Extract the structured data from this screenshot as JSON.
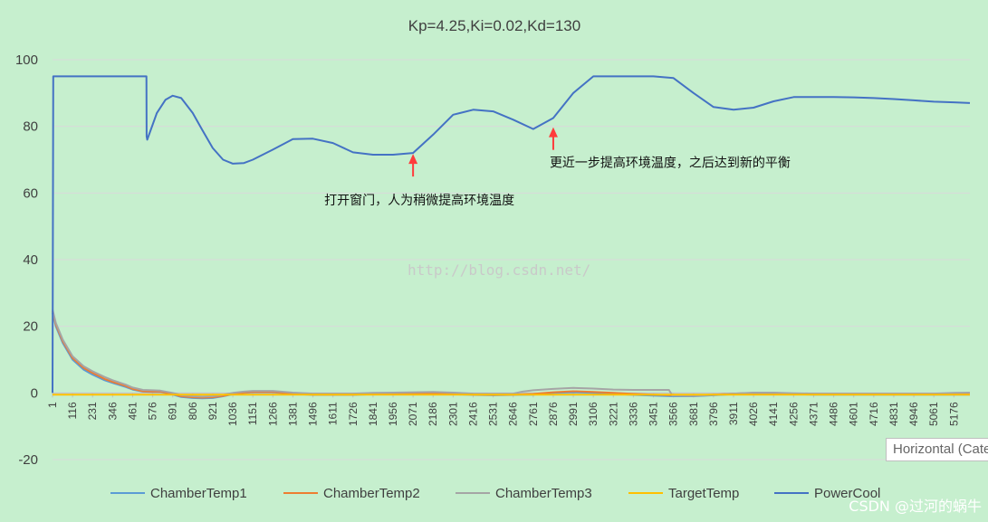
{
  "chart_data": {
    "type": "line",
    "title": "Kp=4.25,Ki=0.02,Kd=130",
    "ylim": [
      -20,
      100
    ],
    "yticks": [
      -20,
      0,
      20,
      40,
      60,
      80,
      100
    ],
    "xticks": [
      1,
      116,
      231,
      346,
      461,
      576,
      691,
      806,
      921,
      1036,
      1151,
      1266,
      1381,
      1496,
      1611,
      1726,
      1841,
      1956,
      2071,
      2186,
      2301,
      2416,
      2531,
      2646,
      2761,
      2876,
      2991,
      3106,
      3221,
      3336,
      3451,
      3566,
      3681,
      3796,
      3911,
      4026,
      4141,
      4256,
      4371,
      4486,
      4601,
      4716,
      4831,
      4946,
      5061,
      5176
    ],
    "xlim": [
      1,
      5268
    ],
    "grid": true,
    "legend_position": "bottom",
    "series": [
      {
        "name": "ChamberTemp1",
        "color": "#5b9bd5",
        "x": [
          1,
          20,
          60,
          116,
          180,
          231,
          300,
          346,
          420,
          461,
          520,
          576,
          620,
          691,
          740,
          806,
          860,
          921,
          980,
          1036,
          1100,
          1151,
          1266,
          1381,
          1496,
          1611,
          1726,
          1841,
          1956,
          2071,
          2186,
          2301,
          2416,
          2531,
          2646,
          2761,
          2876,
          2991,
          3106,
          3221,
          3336,
          3451,
          3566,
          3681,
          3796,
          3911,
          4026,
          4141,
          4256,
          4371,
          4486,
          4601,
          4716,
          4831,
          4946,
          5061,
          5176,
          5268
        ],
        "values": [
          24,
          20,
          15,
          10,
          7,
          5.5,
          3.8,
          3,
          1.8,
          1,
          0.4,
          0.3,
          0.3,
          -0.5,
          -1.2,
          -1.5,
          -1.6,
          -1.5,
          -1.0,
          -0.4,
          0,
          0.2,
          0.2,
          -0.3,
          -0.6,
          -0.6,
          -0.6,
          -0.4,
          -0.3,
          -0.3,
          -0.2,
          -0.4,
          -0.6,
          -0.7,
          -0.6,
          -0.5,
          0,
          0.2,
          0,
          -0.3,
          -0.6,
          -0.8,
          -1.0,
          -1.0,
          -0.7,
          -0.4,
          -0.3,
          -0.3,
          -0.4,
          -0.5,
          -0.5,
          -0.5,
          -0.5,
          -0.5,
          -0.5,
          -0.5,
          -0.5,
          -0.5
        ]
      },
      {
        "name": "ChamberTemp2",
        "color": "#ed7d31",
        "x": [
          1,
          20,
          60,
          116,
          180,
          231,
          300,
          346,
          420,
          461,
          520,
          576,
          620,
          691,
          740,
          806,
          860,
          921,
          980,
          1036,
          1100,
          1151,
          1266,
          1381,
          1496,
          1611,
          1726,
          1841,
          1956,
          2071,
          2186,
          2301,
          2416,
          2531,
          2646,
          2761,
          2876,
          2991,
          3106,
          3221,
          3336,
          3451,
          3566,
          3681,
          3796,
          3911,
          4026,
          4141,
          4256,
          4371,
          4486,
          4601,
          4716,
          4831,
          4946,
          5061,
          5176,
          5268
        ],
        "values": [
          24.5,
          20.5,
          15.5,
          10.5,
          7.5,
          6,
          4.2,
          3.3,
          2.1,
          1.2,
          0.5,
          0.4,
          0.4,
          -0.3,
          -1.0,
          -1.3,
          -1.4,
          -1.3,
          -0.9,
          -0.3,
          0.1,
          0.3,
          0.3,
          -0.2,
          -0.5,
          -0.5,
          -0.5,
          -0.3,
          -0.2,
          -0.2,
          -0.1,
          -0.3,
          -0.5,
          -0.6,
          -0.5,
          -0.3,
          0.2,
          0.5,
          0.3,
          0,
          -0.3,
          -0.5,
          -0.7,
          -0.7,
          -0.5,
          -0.2,
          0,
          0,
          -0.2,
          -0.3,
          -0.3,
          -0.3,
          -0.3,
          -0.3,
          -0.3,
          -0.3,
          -0.3,
          -0.3
        ]
      },
      {
        "name": "ChamberTemp3",
        "color": "#a5a5a5",
        "x": [
          1,
          20,
          60,
          116,
          180,
          231,
          300,
          346,
          420,
          461,
          520,
          576,
          620,
          691,
          740,
          806,
          860,
          921,
          980,
          1036,
          1100,
          1151,
          1266,
          1381,
          1496,
          1611,
          1726,
          1841,
          1956,
          2071,
          2186,
          2301,
          2416,
          2531,
          2646,
          2700,
          2761,
          2876,
          2991,
          3106,
          3221,
          3336,
          3451,
          3540,
          3560,
          3681,
          3796,
          3911,
          4026,
          4141,
          4256,
          4371,
          4486,
          4601,
          4716,
          4831,
          4946,
          5061,
          5176,
          5268
        ],
        "values": [
          25,
          21,
          16,
          11,
          8,
          6.5,
          4.8,
          3.8,
          2.5,
          1.6,
          0.9,
          0.8,
          0.7,
          0,
          -0.7,
          -1.0,
          -1.1,
          -1.0,
          -0.6,
          0,
          0.4,
          0.6,
          0.6,
          0.1,
          -0.2,
          -0.2,
          -0.2,
          0,
          0.1,
          0.2,
          0.3,
          0.1,
          -0.2,
          -0.3,
          -0.2,
          0.4,
          0.8,
          1.2,
          1.5,
          1.3,
          1.0,
          0.9,
          0.9,
          0.9,
          -0.8,
          -0.9,
          -0.6,
          -0.2,
          0.1,
          0.1,
          -0.1,
          -0.2,
          -0.2,
          -0.2,
          -0.2,
          -0.2,
          -0.2,
          -0.2,
          0,
          0.1
        ]
      },
      {
        "name": "TargetTemp",
        "color": "#ffc000",
        "x": [
          1,
          5268
        ],
        "values": [
          -0.5,
          -0.5
        ]
      },
      {
        "name": "PowerCool",
        "color": "#4472c4",
        "x": [
          1,
          5,
          540,
          541,
          545,
          600,
          650,
          691,
          740,
          806,
          860,
          921,
          980,
          1036,
          1100,
          1151,
          1266,
          1381,
          1496,
          1611,
          1726,
          1841,
          1956,
          2071,
          2186,
          2301,
          2416,
          2531,
          2646,
          2761,
          2876,
          2991,
          3106,
          3221,
          3336,
          3451,
          3566,
          3681,
          3796,
          3911,
          4026,
          4141,
          4256,
          4371,
          4486,
          4601,
          4716,
          4831,
          4946,
          5061,
          5176,
          5268
        ],
        "values": [
          0,
          95,
          95,
          77,
          76,
          84,
          88,
          89.2,
          88.5,
          84,
          79,
          73.5,
          70,
          68.8,
          69,
          70,
          73,
          76.2,
          76.3,
          75,
          72.2,
          71.5,
          71.5,
          72,
          77.5,
          83.5,
          85,
          84.5,
          82,
          79.2,
          82.5,
          90,
          95,
          95,
          95,
          95,
          94.5,
          90,
          85.8,
          85,
          85.6,
          87.5,
          88.8,
          88.8,
          88.8,
          88.7,
          88.5,
          88.2,
          87.8,
          87.4,
          87.2,
          87
        ]
      }
    ],
    "annotations": [
      {
        "text": "打开窗门，人为稍微提高环境温度",
        "x": 2071,
        "y": 72
      },
      {
        "text": "更近一步提高环境温度，之后达到新的平衡",
        "x": 2876,
        "y": 80
      }
    ]
  },
  "watermark": "http://blog.csdn.net/",
  "csdn_credit": "CSDN @过河的蜗牛",
  "tooltip": "Horizontal (Category)"
}
